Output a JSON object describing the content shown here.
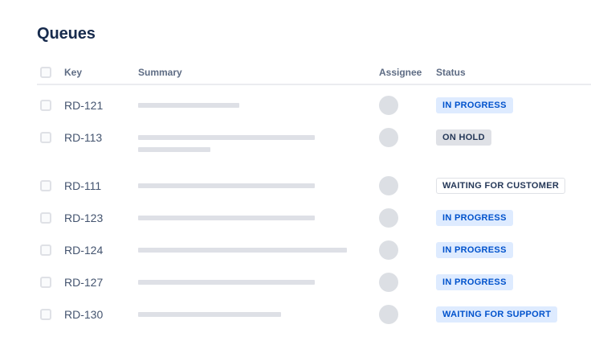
{
  "page": {
    "title": "Queues"
  },
  "table": {
    "columns": [
      {
        "label": "Key"
      },
      {
        "label": "Summary"
      },
      {
        "label": "Assignee"
      },
      {
        "label": "Status"
      }
    ],
    "rows": [
      {
        "key": "RD-121",
        "summary_bars": [
          126
        ],
        "assignee_icon": "avatar-placeholder",
        "status": {
          "label": "IN PROGRESS",
          "style": "blue"
        }
      },
      {
        "key": "RD-113",
        "summary_bars": [
          220,
          90
        ],
        "assignee_icon": "avatar-placeholder",
        "status": {
          "label": "ON HOLD",
          "style": "gray"
        }
      },
      {
        "key": "RD-111",
        "summary_bars": [
          220
        ],
        "assignee_icon": "avatar-placeholder",
        "status": {
          "label": "WAITING FOR CUSTOMER",
          "style": "outline"
        }
      },
      {
        "key": "RD-123",
        "summary_bars": [
          220
        ],
        "assignee_icon": "avatar-placeholder",
        "status": {
          "label": "IN PROGRESS",
          "style": "blue"
        }
      },
      {
        "key": "RD-124",
        "summary_bars": [
          260
        ],
        "assignee_icon": "avatar-placeholder",
        "status": {
          "label": "IN PROGRESS",
          "style": "blue"
        }
      },
      {
        "key": "RD-127",
        "summary_bars": [
          220
        ],
        "assignee_icon": "avatar-placeholder",
        "status": {
          "label": "IN PROGRESS",
          "style": "blue"
        }
      },
      {
        "key": "RD-130",
        "summary_bars": [
          178
        ],
        "assignee_icon": "avatar-placeholder",
        "status": {
          "label": "WAITING FOR SUPPORT",
          "style": "blue"
        }
      }
    ]
  },
  "colors": {
    "page_background": "#FFFFFF",
    "title_text": "#172B4D",
    "header_text": "#5E6C84",
    "key_text": "#44546F",
    "divider": "#EBECF0",
    "skeleton_bar": "#DEE0E6",
    "avatar": "#DCDFE4",
    "badge_blue_bg": "#DEEBFF",
    "badge_blue_text": "#0052CC",
    "badge_gray_bg": "#DFE1E6",
    "badge_gray_text": "#253858",
    "badge_outline_border": "#DFE1E6"
  }
}
